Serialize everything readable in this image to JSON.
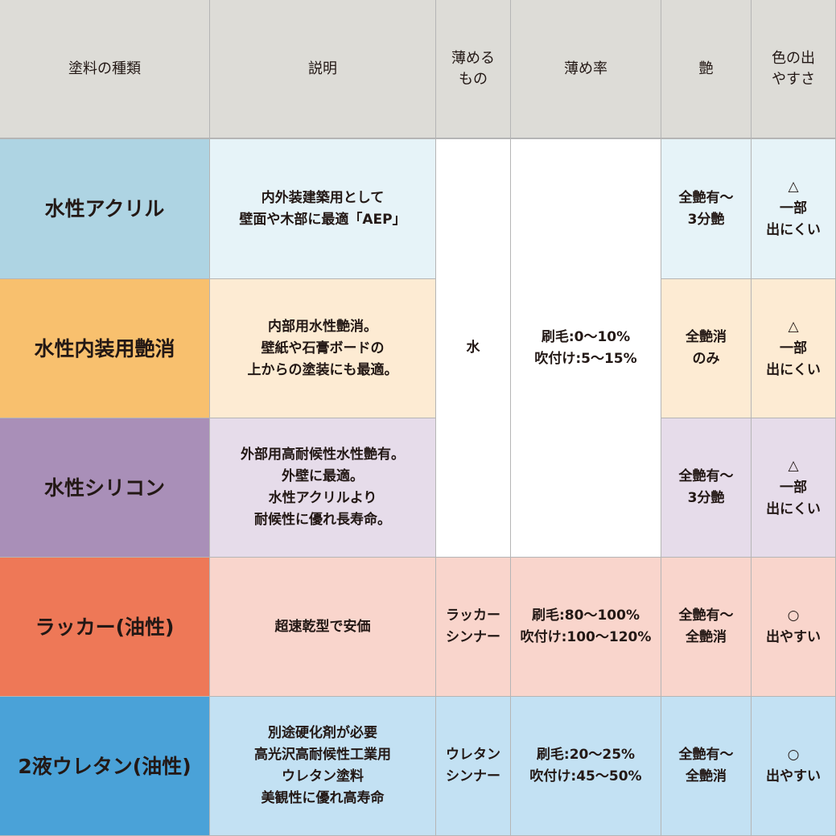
{
  "headers": [
    "塗料の種類",
    "説明",
    "薄める\nもの",
    "薄め率",
    "艶",
    "色の出\nやすさ"
  ],
  "colors": {
    "header": "#dddcd7",
    "text": "#231815"
  },
  "rows": [
    {
      "name": "水性アクリル",
      "desc": "内外装建築用として\n壁面や木部に最適「AEP」",
      "gloss": "全艶有〜\n3分艶",
      "color_ease": "△\n一部\n出にくい",
      "dark": "#aed4e3",
      "light": "#e6f3f8"
    },
    {
      "name": "水性内装用艶消",
      "desc": "内部用水性艶消。\n壁紙や石膏ボードの\n上からの塗装にも最適。",
      "gloss": "全艶消\nのみ",
      "color_ease": "△\n一部\n出にくい",
      "dark": "#f8c06e",
      "light": "#fdebd3"
    },
    {
      "name": "水性シリコン",
      "desc": "外部用高耐候性水性艶有。\n外壁に最適。\n水性アクリルより\n耐候性に優れ長寿命。",
      "gloss": "全艶有〜\n3分艶",
      "color_ease": "△\n一部\n出にくい",
      "dark": "#a98fb8",
      "light": "#e6dcea"
    },
    {
      "name": "ラッカー(油性)",
      "desc": "超速乾型で安価",
      "thinner": "ラッカー\nシンナー",
      "ratio": "刷毛:80〜100%\n吹付け:100〜120%",
      "gloss": "全艶有〜\n全艶消",
      "color_ease": "○\n出やすい",
      "dark": "#ee7857",
      "light": "#f9d5cc"
    },
    {
      "name": "2液ウレタン(油性)",
      "desc": "別途硬化剤が必要\n高光沢高耐候性工業用\nウレタン塗料\n美観性に優れ高寿命",
      "thinner": "ウレタン\nシンナー",
      "ratio": "刷毛:20〜25%\n吹付け:45〜50%",
      "gloss": "全艶有〜\n全艶消",
      "color_ease": "○\n出やすい",
      "dark": "#4aa2d8",
      "light": "#c3e1f3"
    }
  ],
  "water_group": {
    "thinner": "水",
    "ratio": "刷毛:0〜10%\n吹付け:5〜15%"
  }
}
